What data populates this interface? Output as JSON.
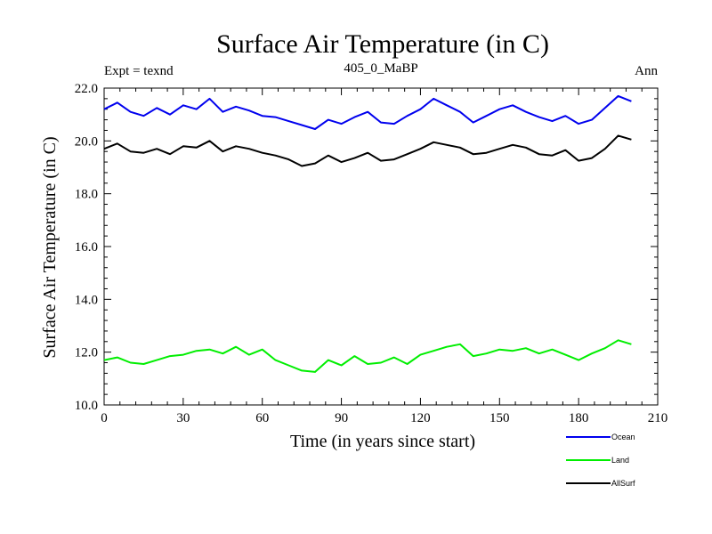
{
  "chart_data": {
    "type": "line",
    "title": "Surface Air Temperature (in C)",
    "subtitle": "405_0_MaBP",
    "left_annotation": "Expt = texnd",
    "right_annotation": "Ann",
    "xlabel": "Time (in years since start)",
    "ylabel": "Surface Air Temperature (in C)",
    "xlim": [
      0,
      210
    ],
    "ylim": [
      10.0,
      22.0
    ],
    "x_ticks": [
      0,
      30,
      60,
      90,
      120,
      150,
      180,
      210
    ],
    "x_tick_labels": [
      "0",
      "30",
      "60",
      "90",
      "120",
      "150",
      "180",
      "210"
    ],
    "y_ticks": [
      10.0,
      12.0,
      14.0,
      16.0,
      18.0,
      20.0,
      22.0
    ],
    "y_tick_labels": [
      "10.0",
      "12.0",
      "14.0",
      "16.0",
      "18.0",
      "20.0",
      "22.0"
    ],
    "grid": false,
    "legend_position": "bottom-right, outside plot",
    "x": [
      0,
      5,
      10,
      15,
      20,
      25,
      30,
      35,
      40,
      45,
      50,
      55,
      60,
      65,
      70,
      75,
      80,
      85,
      90,
      95,
      100,
      105,
      110,
      115,
      120,
      125,
      130,
      135,
      140,
      145,
      150,
      155,
      160,
      165,
      170,
      175,
      180,
      185,
      190,
      195,
      200
    ],
    "series": [
      {
        "name": "Ocean",
        "color": "#0000ee",
        "values": [
          21.2,
          21.45,
          21.1,
          20.95,
          21.25,
          21.0,
          21.35,
          21.2,
          21.6,
          21.1,
          21.3,
          21.15,
          20.95,
          20.9,
          20.75,
          20.6,
          20.45,
          20.8,
          20.65,
          20.9,
          21.1,
          20.7,
          20.65,
          20.95,
          21.2,
          21.6,
          21.35,
          21.1,
          20.7,
          20.95,
          21.2,
          21.35,
          21.1,
          20.9,
          20.75,
          20.95,
          20.65,
          20.8,
          21.25,
          21.7,
          21.5
        ]
      },
      {
        "name": "Land",
        "color": "#00ee00",
        "values": [
          11.7,
          11.8,
          11.6,
          11.55,
          11.7,
          11.85,
          11.9,
          12.05,
          12.1,
          11.95,
          12.2,
          11.9,
          12.1,
          11.7,
          11.5,
          11.3,
          11.25,
          11.7,
          11.5,
          11.85,
          11.55,
          11.6,
          11.8,
          11.55,
          11.9,
          12.05,
          12.2,
          12.3,
          11.85,
          11.95,
          12.1,
          12.05,
          12.15,
          11.95,
          12.1,
          11.9,
          11.7,
          11.95,
          12.15,
          12.45,
          12.3
        ]
      },
      {
        "name": "AllSurf",
        "color": "#000000",
        "values": [
          19.7,
          19.9,
          19.6,
          19.55,
          19.7,
          19.5,
          19.8,
          19.75,
          20.0,
          19.6,
          19.8,
          19.7,
          19.55,
          19.45,
          19.3,
          19.05,
          19.15,
          19.45,
          19.2,
          19.35,
          19.55,
          19.25,
          19.3,
          19.5,
          19.7,
          19.95,
          19.85,
          19.75,
          19.5,
          19.55,
          19.7,
          19.85,
          19.75,
          19.5,
          19.45,
          19.65,
          19.25,
          19.35,
          19.7,
          20.2,
          20.05
        ]
      }
    ]
  }
}
